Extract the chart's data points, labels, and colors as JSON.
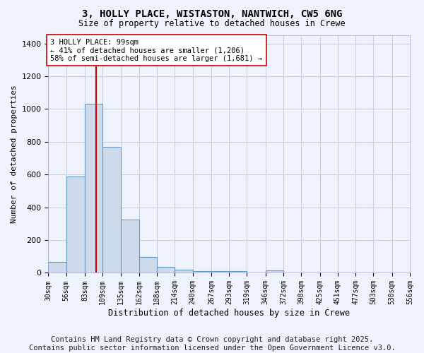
{
  "title": "3, HOLLY PLACE, WISTASTON, NANTWICH, CW5 6NG",
  "subtitle": "Size of property relative to detached houses in Crewe",
  "xlabel": "Distribution of detached houses by size in Crewe",
  "ylabel": "Number of detached properties",
  "bar_color": "#ccdaeb",
  "bar_edge_color": "#6699bb",
  "background_color": "#eef2fb",
  "grid_color": "#c8cfe0",
  "vline_x": 99,
  "vline_color": "#cc0000",
  "annotation_text": "3 HOLLY PLACE: 99sqm\n← 41% of detached houses are smaller (1,206)\n58% of semi-detached houses are larger (1,681) →",
  "annotation_box_color": "#ffffff",
  "annotation_box_edge": "#cc0000",
  "bins": [
    30,
    56,
    83,
    109,
    135,
    162,
    188,
    214,
    240,
    267,
    293,
    319,
    346,
    372,
    398,
    425,
    451,
    477,
    503,
    530,
    556
  ],
  "bin_labels": [
    "30sqm",
    "56sqm",
    "83sqm",
    "109sqm",
    "135sqm",
    "162sqm",
    "188sqm",
    "214sqm",
    "240sqm",
    "267sqm",
    "293sqm",
    "319sqm",
    "346sqm",
    "372sqm",
    "398sqm",
    "425sqm",
    "451sqm",
    "477sqm",
    "503sqm",
    "530sqm",
    "556sqm"
  ],
  "values": [
    65,
    590,
    1030,
    770,
    325,
    95,
    35,
    20,
    10,
    10,
    10,
    0,
    15,
    0,
    0,
    0,
    0,
    0,
    0,
    0
  ],
  "ylim": [
    0,
    1450
  ],
  "yticks": [
    0,
    200,
    400,
    600,
    800,
    1000,
    1200,
    1400
  ],
  "footer": "Contains HM Land Registry data © Crown copyright and database right 2025.\nContains public sector information licensed under the Open Government Licence v3.0.",
  "footer_fontsize": 7.5
}
